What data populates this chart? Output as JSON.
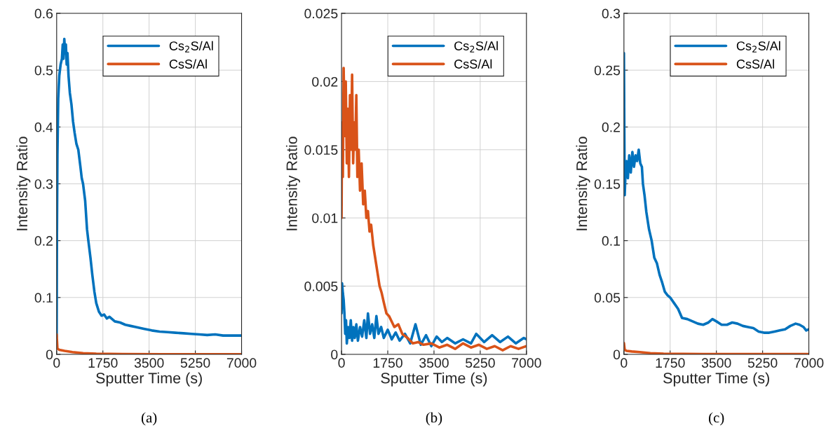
{
  "chart_data": [
    {
      "type": "line",
      "xlabel": "Sputter Time (s)",
      "ylabel": "Intensity Ratio",
      "annotations": [
        "(a)"
      ],
      "xlim": [
        0,
        7000
      ],
      "xticks": [
        0,
        1750,
        3500,
        5250,
        7000
      ],
      "ylim": [
        0,
        0.6
      ],
      "yticks": [
        0,
        0.1,
        0.2,
        0.3,
        0.4,
        0.5,
        0.6
      ],
      "grid": true,
      "legend": "top right",
      "line_style": "solid",
      "marker": "none",
      "series": [
        {
          "name": "Cs$_{2}$S/Al",
          "color": "#0072bd",
          "x": [
            0,
            10,
            30,
            60,
            100,
            150,
            200,
            230,
            260,
            290,
            320,
            350,
            380,
            410,
            450,
            500,
            560,
            620,
            680,
            750,
            820,
            900,
            950,
            1000,
            1080,
            1150,
            1200,
            1280,
            1350,
            1430,
            1500,
            1600,
            1700,
            1800,
            1900,
            2000,
            2200,
            2400,
            2600,
            2800,
            3000,
            3300,
            3600,
            3900,
            4200,
            4500,
            4800,
            5100,
            5400,
            5700,
            6000,
            6300,
            6600,
            7000
          ],
          "values": [
            0.03,
            0.2,
            0.35,
            0.45,
            0.49,
            0.51,
            0.52,
            0.545,
            0.52,
            0.555,
            0.53,
            0.545,
            0.51,
            0.53,
            0.49,
            0.46,
            0.44,
            0.41,
            0.39,
            0.37,
            0.36,
            0.33,
            0.31,
            0.3,
            0.27,
            0.22,
            0.2,
            0.17,
            0.14,
            0.11,
            0.09,
            0.075,
            0.068,
            0.07,
            0.063,
            0.066,
            0.058,
            0.056,
            0.052,
            0.05,
            0.048,
            0.045,
            0.042,
            0.04,
            0.039,
            0.038,
            0.037,
            0.036,
            0.035,
            0.034,
            0.035,
            0.033,
            0.033,
            0.033
          ]
        },
        {
          "name": "CsS/Al",
          "color": "#d95319",
          "x": [
            0,
            30,
            100,
            300,
            600,
            1000,
            1500,
            2500,
            4000,
            7000
          ],
          "values": [
            0.035,
            0.01,
            0.008,
            0.006,
            0.004,
            0.002,
            0.001,
            0.0005,
            0.0003,
            0.0002
          ]
        }
      ]
    },
    {
      "type": "line",
      "xlabel": "Sputter Time (s)",
      "ylabel": "Intensity Ratio",
      "annotations": [
        "(b)"
      ],
      "xlim": [
        0,
        7000
      ],
      "xticks": [
        0,
        1750,
        3500,
        5250,
        7000
      ],
      "ylim": [
        0,
        0.025
      ],
      "yticks": [
        0,
        0.005,
        0.01,
        0.015,
        0.02,
        0.025
      ],
      "grid": true,
      "legend": "top right",
      "line_style": "solid",
      "marker": "none",
      "series": [
        {
          "name": "Cs$_{2}$S/Al",
          "color": "#0072bd",
          "x": [
            0,
            20,
            50,
            80,
            110,
            140,
            170,
            200,
            250,
            300,
            350,
            400,
            450,
            500,
            560,
            620,
            700,
            780,
            860,
            940,
            1000,
            1080,
            1160,
            1240,
            1320,
            1400,
            1500,
            1600,
            1750,
            1900,
            2050,
            2200,
            2400,
            2600,
            2800,
            3000,
            3200,
            3400,
            3600,
            3800,
            4000,
            4300,
            4600,
            4900,
            5100,
            5400,
            5700,
            6000,
            6300,
            6600,
            6900,
            7000
          ],
          "values": [
            0.003,
            0.0052,
            0.0045,
            0.004,
            0.003,
            0.0015,
            0.0025,
            0.0008,
            0.002,
            0.0012,
            0.0025,
            0.001,
            0.002,
            0.0012,
            0.0022,
            0.001,
            0.002,
            0.0013,
            0.0025,
            0.0012,
            0.003,
            0.0015,
            0.0022,
            0.0012,
            0.0028,
            0.0015,
            0.002,
            0.0012,
            0.0018,
            0.0011,
            0.0016,
            0.001,
            0.0015,
            0.0008,
            0.0022,
            0.0007,
            0.0014,
            0.0006,
            0.0013,
            0.0009,
            0.0012,
            0.0008,
            0.0011,
            0.0008,
            0.0015,
            0.0009,
            0.0014,
            0.0009,
            0.0013,
            0.0008,
            0.0012,
            0.0011
          ]
        },
        {
          "name": "CsS/Al",
          "color": "#d95319",
          "x": [
            0,
            20,
            50,
            80,
            120,
            160,
            200,
            240,
            280,
            320,
            360,
            400,
            440,
            480,
            520,
            560,
            600,
            650,
            700,
            760,
            820,
            880,
            940,
            1000,
            1060,
            1120,
            1200,
            1280,
            1360,
            1440,
            1520,
            1600,
            1700,
            1800,
            1900,
            2000,
            2150,
            2300,
            2500,
            2700,
            2900,
            3100,
            3400,
            3700,
            4000,
            4300,
            4600,
            4900,
            5200,
            5500,
            5800,
            6100,
            6400,
            6700,
            7000
          ],
          "values": [
            0.01,
            0.017,
            0.013,
            0.021,
            0.016,
            0.02,
            0.014,
            0.018,
            0.013,
            0.019,
            0.015,
            0.0205,
            0.014,
            0.017,
            0.015,
            0.019,
            0.013,
            0.015,
            0.012,
            0.014,
            0.011,
            0.012,
            0.01,
            0.0105,
            0.009,
            0.0095,
            0.008,
            0.007,
            0.006,
            0.005,
            0.0045,
            0.0038,
            0.003,
            0.0028,
            0.0024,
            0.002,
            0.0022,
            0.0015,
            0.0012,
            0.0008,
            0.0009,
            0.0007,
            0.0008,
            0.0005,
            0.0007,
            0.0004,
            0.0008,
            0.0005,
            0.0007,
            0.0004,
            0.0006,
            0.0003,
            0.0006,
            0.0004,
            0.0006
          ]
        }
      ]
    },
    {
      "type": "line",
      "xlabel": "Sputter Time (s)",
      "ylabel": "Intensity Ratio",
      "annotations": [
        "(c)"
      ],
      "xlim": [
        0,
        7000
      ],
      "xticks": [
        0,
        1750,
        3500,
        5250,
        7000
      ],
      "ylim": [
        0,
        0.3
      ],
      "yticks": [
        0,
        0.05,
        0.1,
        0.15,
        0.2,
        0.25,
        0.3
      ],
      "grid": true,
      "legend": "top right",
      "line_style": "solid",
      "marker": "none",
      "series": [
        {
          "name": "Cs$_{2}$S/Al",
          "color": "#0072bd",
          "x": [
            0,
            15,
            30,
            60,
            100,
            150,
            200,
            260,
            320,
            380,
            440,
            500,
            560,
            620,
            680,
            720,
            780,
            850,
            950,
            1050,
            1150,
            1250,
            1350,
            1450,
            1550,
            1650,
            1750,
            1900,
            2050,
            2200,
            2400,
            2600,
            2800,
            3000,
            3200,
            3350,
            3500,
            3700,
            3900,
            4100,
            4300,
            4500,
            4700,
            4900,
            5100,
            5300,
            5500,
            5700,
            5900,
            6100,
            6300,
            6500,
            6650,
            6800,
            6900,
            7000
          ],
          "values": [
            0.265,
            0.2,
            0.14,
            0.16,
            0.17,
            0.155,
            0.175,
            0.16,
            0.178,
            0.165,
            0.175,
            0.17,
            0.18,
            0.168,
            0.165,
            0.15,
            0.14,
            0.125,
            0.11,
            0.1,
            0.085,
            0.08,
            0.07,
            0.063,
            0.055,
            0.052,
            0.05,
            0.045,
            0.04,
            0.032,
            0.031,
            0.029,
            0.027,
            0.026,
            0.028,
            0.031,
            0.029,
            0.026,
            0.026,
            0.028,
            0.027,
            0.025,
            0.024,
            0.023,
            0.02,
            0.019,
            0.019,
            0.02,
            0.021,
            0.022,
            0.025,
            0.027,
            0.026,
            0.024,
            0.021,
            0.022
          ]
        },
        {
          "name": "CsS/Al",
          "color": "#d95319",
          "x": [
            0,
            30,
            100,
            300,
            600,
            1000,
            1500,
            3000,
            7000
          ],
          "values": [
            0.01,
            0.004,
            0.003,
            0.0025,
            0.002,
            0.001,
            0.0005,
            0.0003,
            0.0002
          ]
        }
      ]
    }
  ]
}
